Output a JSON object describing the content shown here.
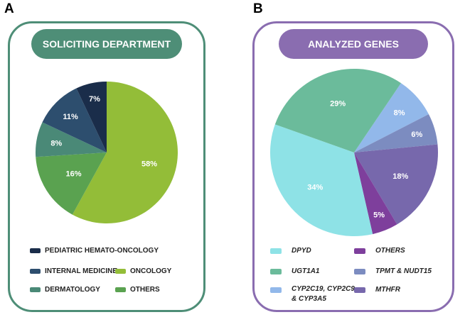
{
  "chart_data": [
    {
      "type": "pie",
      "panel_label": "A",
      "title": "SOLICITING DEPARTMENT",
      "accent": "#4E8E77",
      "start_angle_deg": 0,
      "slices": [
        {
          "name": "ONCOLOGY",
          "value": 58,
          "label": "58%",
          "color": "#93BD38"
        },
        {
          "name": "OTHERS",
          "value": 16,
          "label": "16%",
          "color": "#5AA250"
        },
        {
          "name": "DERMATOLOGY",
          "value": 8,
          "label": "8%",
          "color": "#4A8977"
        },
        {
          "name": "INTERNAL MEDICINE",
          "value": 11,
          "label": "11%",
          "color": "#2D4E6E"
        },
        {
          "name": "PEDIATRIC HEMATO-ONCOLOGY",
          "value": 7,
          "label": "7%",
          "color": "#1A2D4A"
        }
      ],
      "legend_order": [
        "PEDIATRIC HEMATO-ONCOLOGY",
        "INTERNAL MEDICINE",
        "ONCOLOGY",
        "DERMATOLOGY",
        "OTHERS"
      ]
    },
    {
      "type": "pie",
      "panel_label": "B",
      "title": "ANALYZED GENES",
      "accent": "#8A6DB0",
      "start_angle_deg": 34,
      "slices": [
        {
          "name": "CYP2C19, CYP2C9 & CYP3A5",
          "value": 8,
          "label": "8%",
          "color": "#92B8EA"
        },
        {
          "name": "TPMT & NUDT15",
          "value": 6,
          "label": "6%",
          "color": "#7C8CC0"
        },
        {
          "name": "MTHFR",
          "value": 18,
          "label": "18%",
          "color": "#7768AC"
        },
        {
          "name": "OTHERS",
          "value": 5,
          "label": "5%",
          "color": "#7E3F9C"
        },
        {
          "name": "DPYD",
          "value": 34,
          "label": "34%",
          "color": "#8EE2E6"
        },
        {
          "name": "UGT1A1",
          "value": 29,
          "label": "29%",
          "color": "#6BBB9B"
        }
      ],
      "legend_order": [
        "DPYD",
        "OTHERS",
        "UGT1A1",
        "TPMT & NUDT15",
        "CYP2C19, CYP2C9 & CYP3A5",
        "MTHFR"
      ]
    }
  ]
}
